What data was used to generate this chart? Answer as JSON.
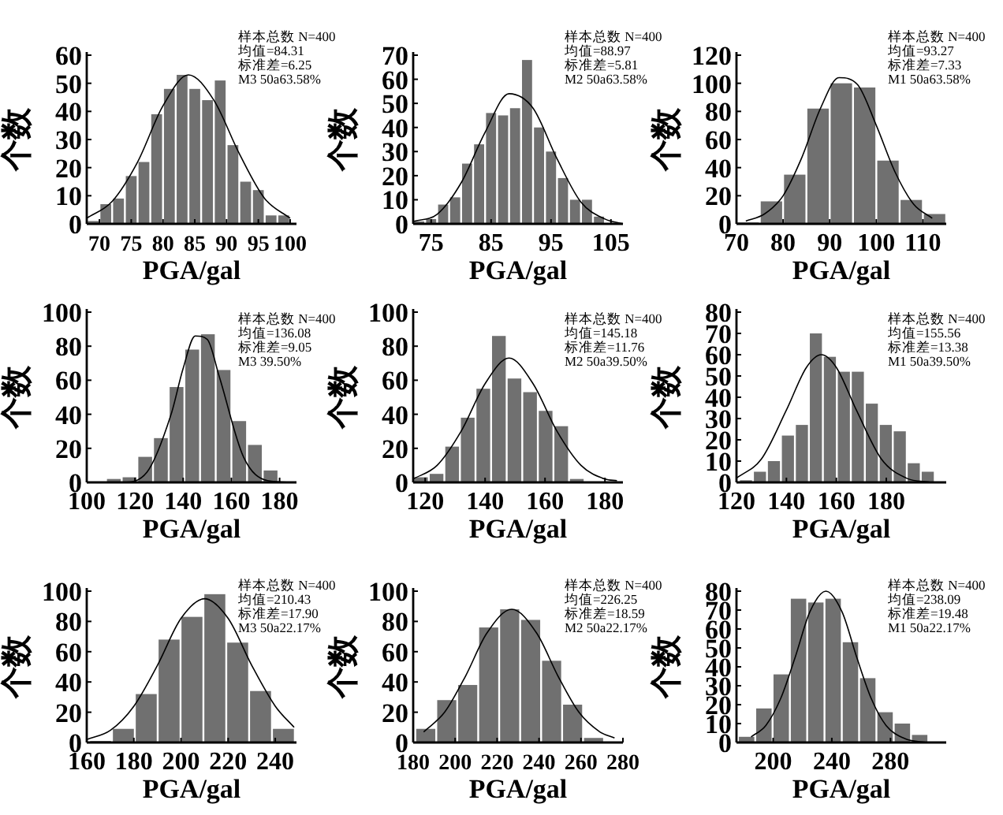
{
  "chart_data": [
    {
      "type": "histogram",
      "xlabel": "PGA/gal",
      "ylabel": "个数",
      "color": "#707070",
      "xlim": [
        68,
        101
      ],
      "ylim": [
        0,
        60
      ],
      "xticks": [
        70,
        75,
        80,
        85,
        90,
        95,
        100
      ],
      "yticks": [
        0,
        10,
        20,
        30,
        40,
        50,
        60
      ],
      "bins": [
        68,
        70,
        72,
        74,
        76,
        78,
        80,
        82,
        84,
        86,
        88,
        90,
        92,
        94,
        96,
        98,
        100
      ],
      "values": [
        1,
        7,
        9,
        17,
        22,
        39,
        48,
        53,
        48,
        44,
        51,
        28,
        15,
        12,
        3,
        3
      ],
      "series": [
        {
          "type": "line",
          "color": "#000000",
          "x": [
            68,
            72,
            76,
            80,
            84,
            88,
            92,
            96,
            100
          ],
          "values": [
            2,
            8,
            22,
            42,
            53,
            44,
            25,
            9,
            2
          ]
        }
      ],
      "annotations": [
        "样本总数 N=400",
        "均值=84.31",
        "标准差=6.25",
        "M3 50a63.58%"
      ]
    },
    {
      "type": "histogram",
      "xlabel": "PGA/gal",
      "ylabel": "个数",
      "color": "#707070",
      "xlim": [
        72,
        107
      ],
      "ylim": [
        0,
        70
      ],
      "xticks": [
        75,
        85,
        95,
        105
      ],
      "yticks": [
        0,
        10,
        20,
        30,
        40,
        50,
        60,
        70
      ],
      "bins": [
        72,
        74,
        76,
        78,
        80,
        82,
        84,
        86,
        88,
        90,
        92,
        94,
        96,
        98,
        100,
        102,
        104
      ],
      "values": [
        1,
        2,
        8,
        11,
        25,
        33,
        46,
        45,
        48,
        68,
        40,
        30,
        19,
        10,
        10,
        3
      ],
      "series": [
        {
          "type": "line",
          "color": "#000000",
          "x": [
            72,
            76,
            80,
            84,
            88,
            92,
            96,
            100,
            104,
            107
          ],
          "values": [
            1,
            4,
            17,
            38,
            54,
            48,
            27,
            9,
            2,
            0
          ]
        }
      ],
      "annotations": [
        "样本总数 N=400",
        "均值=88.97",
        "标准差=5.81",
        "M2 50a63.58%"
      ]
    },
    {
      "type": "histogram",
      "xlabel": "PGA/gal",
      "ylabel": "个数",
      "color": "#707070",
      "xlim": [
        70,
        115
      ],
      "ylim": [
        0,
        120
      ],
      "xticks": [
        70,
        80,
        90,
        100,
        110
      ],
      "yticks": [
        0,
        20,
        40,
        60,
        80,
        100,
        120
      ],
      "bins": [
        70,
        75,
        80,
        85,
        90,
        95,
        100,
        105,
        110,
        115
      ],
      "values": [
        1,
        16,
        35,
        82,
        100,
        97,
        45,
        17,
        7
      ],
      "series": [
        {
          "type": "line",
          "color": "#000000",
          "x": [
            72,
            76,
            80,
            84,
            88,
            92,
            96,
            100,
            104,
            108,
            112
          ],
          "values": [
            2,
            7,
            20,
            47,
            82,
            104,
            99,
            70,
            37,
            14,
            4
          ]
        }
      ],
      "annotations": [
        "样本总数 N=400",
        "均值=93.27",
        "标准差=7.33",
        "M1 50a63.58%"
      ]
    },
    {
      "type": "histogram",
      "xlabel": "PGA/gal",
      "ylabel": "个数",
      "color": "#707070",
      "xlim": [
        100,
        187
      ],
      "ylim": [
        0,
        100
      ],
      "xticks": [
        100,
        120,
        140,
        160,
        180
      ],
      "yticks": [
        0,
        20,
        40,
        60,
        80,
        100
      ],
      "bins": [
        108,
        114.5,
        121,
        127.5,
        134,
        140.5,
        147,
        153.5,
        160,
        166.5,
        173,
        179.5
      ],
      "values": [
        2,
        3,
        15,
        26,
        56,
        78,
        87,
        66,
        36,
        22,
        7
      ],
      "series": [
        {
          "type": "line",
          "color": "#000000",
          "x": [
            105,
            115,
            125,
            135,
            140,
            145,
            150,
            155,
            165,
            175,
            185
          ],
          "values": [
            0,
            0,
            6,
            40,
            67,
            86,
            84,
            62,
            15,
            1,
            0
          ]
        }
      ],
      "annotations": [
        "样本总数 N=400",
        "均值=136.08",
        "标准差=9.05",
        "M3 39.50%"
      ]
    },
    {
      "type": "histogram",
      "xlabel": "PGA/gal",
      "ylabel": "个数",
      "color": "#707070",
      "xlim": [
        116,
        186
      ],
      "ylim": [
        0,
        100
      ],
      "xticks": [
        120,
        140,
        160,
        180
      ],
      "yticks": [
        0,
        20,
        40,
        60,
        80,
        100
      ],
      "bins": [
        116,
        121.2,
        126.4,
        131.6,
        136.8,
        142,
        147.2,
        152.4,
        157.6,
        162.8,
        168,
        173.2,
        178.4
      ],
      "values": [
        3,
        5,
        21,
        38,
        55,
        86,
        61,
        53,
        42,
        33,
        2,
        0
      ],
      "series": [
        {
          "type": "line",
          "color": "#000000",
          "x": [
            116,
            124,
            132,
            140,
            148,
            156,
            164,
            172,
            180,
            184
          ],
          "values": [
            2,
            10,
            30,
            58,
            73,
            58,
            30,
            10,
            2,
            1
          ]
        }
      ],
      "annotations": [
        "样本总数 N=400",
        "均值=145.18",
        "标准差=11.76",
        "M2 50a39.50%"
      ]
    },
    {
      "type": "histogram",
      "xlabel": "PGA/gal",
      "ylabel": "个数",
      "color": "#707070",
      "xlim": [
        120,
        204
      ],
      "ylim": [
        0,
        80
      ],
      "xticks": [
        120,
        140,
        160,
        180
      ],
      "yticks": [
        0,
        10,
        20,
        30,
        40,
        50,
        60,
        70,
        80
      ],
      "bins": [
        121,
        126.6,
        132.2,
        137.8,
        143.4,
        149,
        154.6,
        160.2,
        165.8,
        171.4,
        177,
        182.6,
        188.2,
        193.8,
        199.4
      ],
      "values": [
        1,
        5,
        10,
        22,
        27,
        70,
        59,
        52,
        52,
        37,
        27,
        24,
        9,
        5
      ],
      "series": [
        {
          "type": "line",
          "color": "#000000",
          "x": [
            120,
            130,
            140,
            148,
            154,
            160,
            168,
            178,
            188,
            198
          ],
          "values": [
            2,
            11,
            34,
            54,
            60,
            54,
            34,
            11,
            2,
            0
          ]
        }
      ],
      "annotations": [
        "样本总数 N=400",
        "均值=155.56",
        "标准差=13.38",
        "M1 50a39.50%"
      ]
    },
    {
      "type": "histogram",
      "xlabel": "PGA/gal",
      "ylabel": "个数",
      "color": "#707070",
      "xlim": [
        160,
        249
      ],
      "ylim": [
        0,
        100
      ],
      "xticks": [
        160,
        180,
        200,
        220,
        240
      ],
      "yticks": [
        0,
        20,
        40,
        60,
        80,
        100
      ],
      "bins": [
        161,
        170.7,
        180.4,
        190.1,
        199.8,
        209.5,
        219.2,
        228.9,
        238.6,
        248.3
      ],
      "values": [
        1,
        9,
        32,
        68,
        83,
        98,
        66,
        34,
        9
      ],
      "series": [
        {
          "type": "line",
          "color": "#000000",
          "x": [
            160,
            170,
            180,
            190,
            200,
            210,
            220,
            230,
            240,
            248
          ],
          "values": [
            2,
            8,
            24,
            51,
            82,
            95,
            82,
            51,
            24,
            10
          ]
        }
      ],
      "annotations": [
        "样本总数 N=400",
        "均值=210.43",
        "标准差=17.90",
        "M3 50a22.17%"
      ]
    },
    {
      "type": "histogram",
      "xlabel": "PGA/gal",
      "ylabel": "个数",
      "color": "#707070",
      "xlim": [
        180,
        280
      ],
      "ylim": [
        0,
        100
      ],
      "xticks": [
        180,
        200,
        220,
        240,
        260,
        280
      ],
      "yticks": [
        0,
        20,
        40,
        60,
        80,
        100
      ],
      "bins": [
        181,
        191,
        201,
        211,
        221,
        231,
        241,
        251,
        261,
        271
      ],
      "values": [
        9,
        28,
        38,
        76,
        88,
        81,
        54,
        25,
        3
      ],
      "series": [
        {
          "type": "line",
          "color": "#000000",
          "x": [
            185,
            195,
            205,
            215,
            227,
            239,
            249,
            259,
            269,
            276
          ],
          "values": [
            7,
            20,
            44,
            72,
            88,
            72,
            44,
            20,
            7,
            3
          ]
        }
      ],
      "annotations": [
        "样本总数 N=400",
        "均值=226.25",
        "标准差=18.59",
        "M2 50a22.17%"
      ]
    },
    {
      "type": "histogram",
      "xlabel": "PGA/gal",
      "ylabel": "个数",
      "color": "#707070",
      "xlim": [
        175,
        318
      ],
      "ylim": [
        0,
        80
      ],
      "xticks": [
        200,
        240,
        280
      ],
      "yticks": [
        0,
        10,
        20,
        30,
        40,
        50,
        60,
        70,
        80
      ],
      "bins": [
        176,
        187.8,
        199.6,
        211.4,
        223.2,
        235,
        246.8,
        258.6,
        270.4,
        282.2,
        294,
        305.8
      ],
      "values": [
        3,
        18,
        36,
        76,
        74,
        76,
        53,
        34,
        16,
        10,
        4
      ],
      "series": [
        {
          "type": "line",
          "color": "#000000",
          "x": [
            185,
            195,
            205,
            215,
            225,
            236,
            247,
            257,
            267,
            277,
            290,
            305
          ],
          "values": [
            3,
            9,
            23,
            45,
            69,
            80,
            69,
            45,
            23,
            9,
            2,
            0
          ]
        }
      ],
      "annotations": [
        "样本总数 N=400",
        "均值=238.09",
        "标准差=19.48",
        "M1 50a22.17%"
      ]
    }
  ]
}
